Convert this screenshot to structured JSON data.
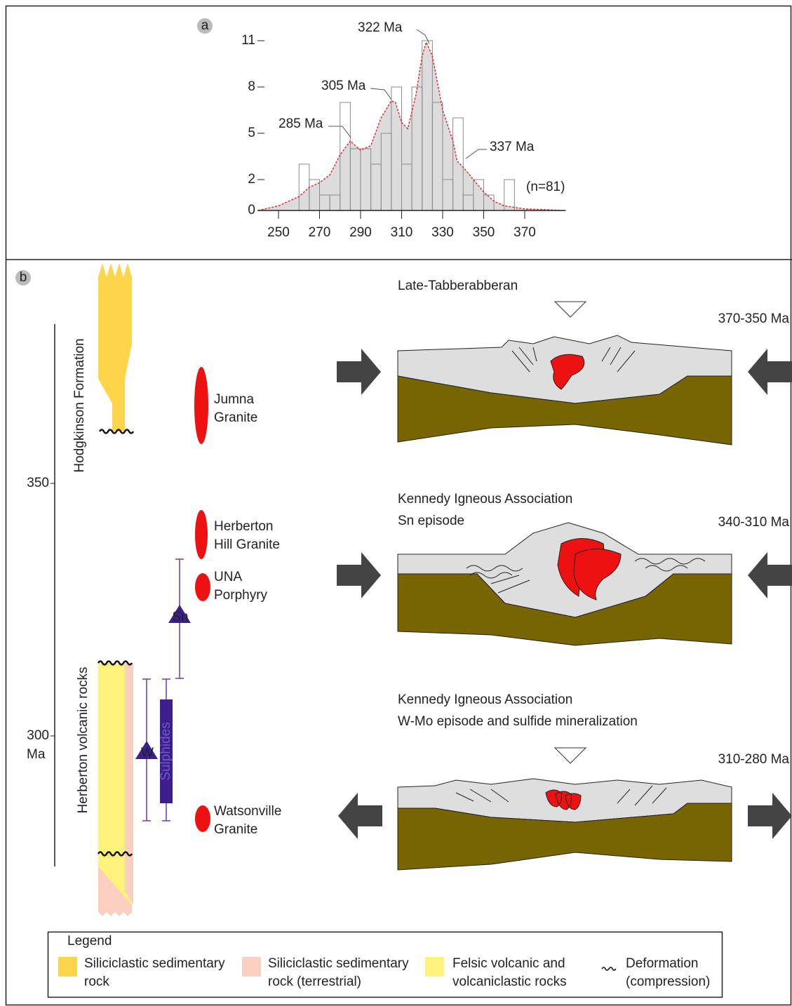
{
  "chart_data": {
    "type": "histogram",
    "panel_label": "a",
    "bins": [
      260,
      265,
      270,
      275,
      280,
      285,
      290,
      295,
      300,
      305,
      310,
      315,
      320,
      325,
      330,
      335,
      340,
      345,
      350,
      355,
      360,
      365
    ],
    "values": [
      3,
      2,
      1,
      1,
      7,
      4,
      4,
      3,
      5,
      8,
      3,
      8,
      11,
      7,
      2,
      6,
      1,
      2,
      1,
      0,
      2
    ],
    "bar_color": "#8a8a8a",
    "density": {
      "x": [
        240,
        250,
        260,
        265,
        270,
        275,
        280,
        285,
        290,
        295,
        300,
        305,
        307,
        310,
        313,
        317,
        320,
        322,
        325,
        330,
        335,
        337,
        340,
        345,
        350,
        355,
        360,
        370,
        380,
        388
      ],
      "values": [
        0,
        0.3,
        0.9,
        1.5,
        1.8,
        2.3,
        3.6,
        4.5,
        3.9,
        4.2,
        6,
        7.1,
        7,
        5.7,
        5.3,
        7.5,
        10,
        10.9,
        10,
        6.5,
        4.5,
        3.2,
        2.8,
        2,
        1.2,
        0.6,
        0.3,
        0.1,
        0.05,
        0
      ],
      "color": "#e03030",
      "fill": "#dcdcdc"
    },
    "xlim": [
      240,
      390
    ],
    "ylim": [
      0,
      11
    ],
    "xticks": [
      250,
      270,
      290,
      310,
      330,
      350,
      370
    ],
    "yticks": [
      0,
      2,
      5,
      8,
      11
    ],
    "annotations": [
      "322 Ma",
      "305 Ma",
      "285 Ma",
      "337 Ma",
      "(n=81)"
    ]
  },
  "diagram": {
    "panel_label": "b",
    "time_axis": {
      "ticks": [
        "350",
        "300"
      ],
      "unit": "Ma"
    },
    "formations": [
      "Hodgkinson Formation",
      "Herberton volcanic rocks"
    ],
    "intrusions": [
      [
        "Jumna",
        "Granite"
      ],
      [
        "Herberton",
        "Hill Granite"
      ],
      [
        "UNA",
        "Porphyry"
      ],
      [
        "Watsonville",
        "Granite"
      ]
    ],
    "intrusion_color": "#ee1111",
    "mineralization": [
      "Sn",
      "W",
      "Sulphides"
    ],
    "mineralization_color": "#3c1f8c",
    "episodes": [
      {
        "title": [
          "Late-Tabberabberan"
        ],
        "age": "370-350 Ma"
      },
      {
        "title": [
          "Kennedy Igneous Association",
          "Sn episode"
        ],
        "age": "340-310 Ma"
      },
      {
        "title": [
          "Kennedy Igneous Association",
          "W-Mo episode and sulfide mineralization"
        ],
        "age": "310-280 Ma"
      }
    ],
    "legend": {
      "title": "Legend",
      "items": [
        {
          "label": [
            "Siliciclastic sedimentary",
            "rock"
          ],
          "color": "#fdd54a"
        },
        {
          "label": [
            "Siliciclastic sedimentary",
            "rock (terrestrial)"
          ],
          "color": "#fbd0c0"
        },
        {
          "label": [
            "Felsic volcanic and",
            "volcaniclastic rocks"
          ],
          "color": "#fef27a"
        },
        {
          "label": [
            "Deformation",
            "(compression)"
          ]
        }
      ]
    }
  }
}
